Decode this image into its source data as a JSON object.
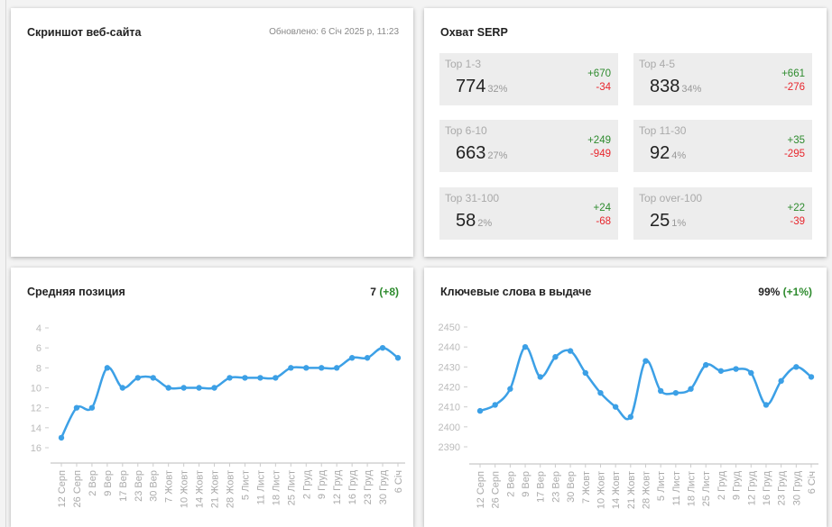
{
  "screenshot_card": {
    "title": "Скриншот веб-сайта",
    "updated": "Обновлено: 6 Січ 2025 р, 11:23"
  },
  "serp_card": {
    "title": "Охват SERP",
    "tiles": [
      {
        "label": "Top 1-3",
        "value": "774",
        "pct": "32%",
        "plus": "+670",
        "minus": "-34"
      },
      {
        "label": "Top 4-5",
        "value": "838",
        "pct": "34%",
        "plus": "+661",
        "minus": "-276"
      },
      {
        "label": "Top 6-10",
        "value": "663",
        "pct": "27%",
        "plus": "+249",
        "minus": "-949"
      },
      {
        "label": "Top 11-30",
        "value": "92",
        "pct": "4%",
        "plus": "+35",
        "minus": "-295"
      },
      {
        "label": "Top 31-100",
        "value": "58",
        "pct": "2%",
        "plus": "+24",
        "minus": "-68"
      },
      {
        "label": "Top over-100",
        "value": "25",
        "pct": "1%",
        "plus": "+22",
        "minus": "-39"
      }
    ]
  },
  "avg_position_card": {
    "title": "Средняя позиция",
    "value": "7",
    "delta": "(+8)"
  },
  "keywords_card": {
    "title": "Ключевые слова в выдаче",
    "value": "99%",
    "delta": "(+1%)"
  },
  "colors": {
    "line": "#3ca0e6",
    "positive": "#2e8b2e",
    "negative": "#e8262d"
  },
  "chart_data": [
    {
      "type": "line",
      "title": "Средняя позиция",
      "y_inverted": true,
      "ylim": [
        4,
        16
      ],
      "yticks": [
        "4",
        "6",
        "8",
        "10",
        "12",
        "14",
        "16"
      ],
      "ytick_values": [
        4,
        6,
        8,
        10,
        12,
        14,
        16
      ],
      "categories": [
        "12 Серп",
        "26 Серп",
        "2 Вер",
        "9 Вер",
        "17 Вер",
        "23 Вер",
        "30 Вер",
        "7 Жовт",
        "10 Жовт",
        "14 Жовт",
        "21 Жовт",
        "28 Жовт",
        "5 Лист",
        "11 Лист",
        "18 Лист",
        "25 Лист",
        "2 Груд",
        "9 Груд",
        "12 Груд",
        "16 Груд",
        "23 Груд",
        "30 Груд",
        "6 Січ"
      ],
      "values": [
        15,
        12,
        12,
        8,
        10,
        9,
        9,
        10,
        10,
        10,
        10,
        9,
        9,
        9,
        9,
        8,
        8,
        8,
        8,
        7,
        7,
        6,
        7
      ],
      "grid": false
    },
    {
      "type": "line",
      "title": "Ключевые слова в выдаче",
      "y_inverted": false,
      "ylim": [
        2390,
        2450
      ],
      "yticks": [
        "2390",
        "2400",
        "2410",
        "2420",
        "2430",
        "2440",
        "2450"
      ],
      "ytick_values": [
        2390,
        2400,
        2410,
        2420,
        2430,
        2440,
        2450
      ],
      "categories": [
        "12 Серп",
        "26 Серп",
        "2 Вер",
        "9 Вер",
        "17 Вер",
        "23 Вер",
        "30 Вер",
        "7 Жовт",
        "10 Жовт",
        "14 Жовт",
        "21 Жовт",
        "28 Жовт",
        "5 Лист",
        "11 Лист",
        "18 Лист",
        "25 Лист",
        "2 Груд",
        "9 Груд",
        "12 Груд",
        "16 Груд",
        "23 Груд",
        "30 Груд",
        "6 Січ"
      ],
      "values": [
        2408,
        2411,
        2419,
        2440,
        2425,
        2435,
        2438,
        2427,
        2417,
        2410,
        2405,
        2433,
        2418,
        2417,
        2419,
        2431,
        2428,
        2429,
        2427,
        2411,
        2423,
        2430,
        2425
      ],
      "grid": false
    }
  ]
}
